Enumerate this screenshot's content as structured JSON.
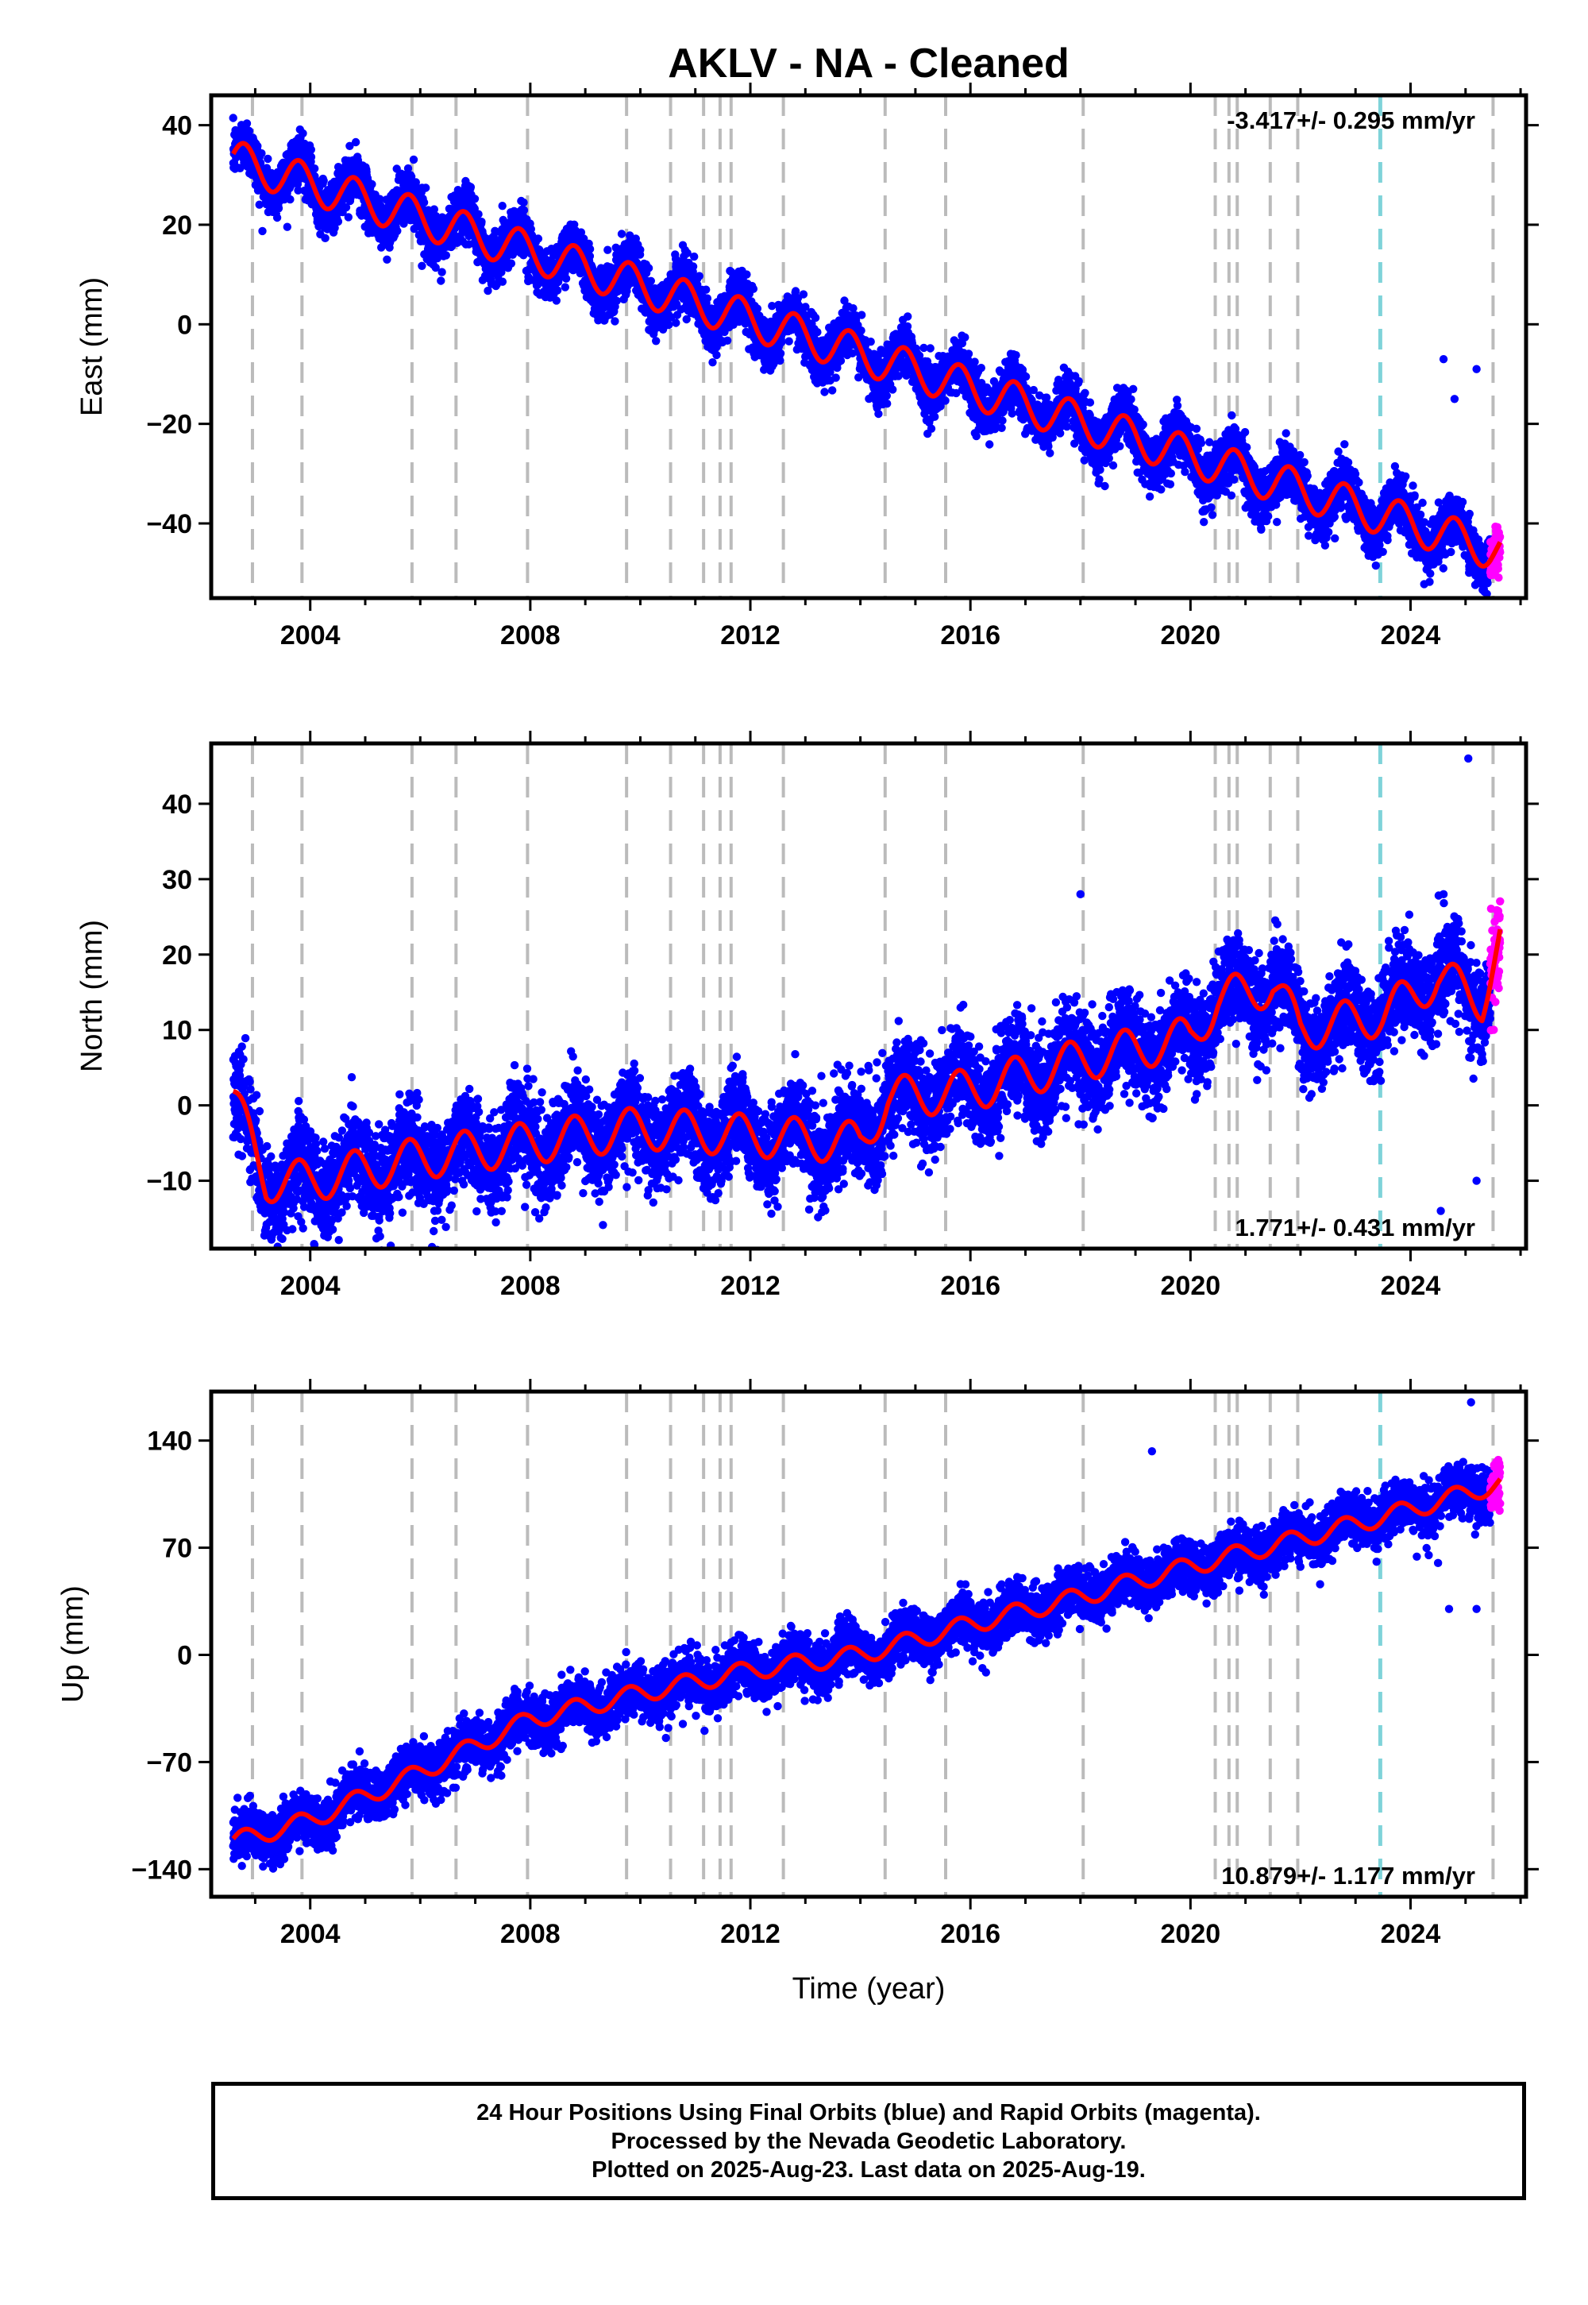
{
  "figure_title": "AKLV  - NA - Cleaned",
  "xlabel": "Time (year)",
  "colors": {
    "final_orbits": "#0000ff",
    "rapid_orbits": "#ff00ff",
    "model_fit": "#ff0000",
    "event_lines": "#bbbbbb",
    "highlight_event": "#7fd3d9"
  },
  "caption": {
    "line1": "24 Hour Positions Using Final Orbits (blue) and Rapid Orbits (magenta).",
    "line2": "Processed by the Nevada Geodetic Laboratory.",
    "line3": "Plotted on 2025-Aug-23. Last data on 2025-Aug-19."
  },
  "chart_data": [
    {
      "type": "scatter",
      "component": "east",
      "ylabel": "East (mm)",
      "xlim": [
        2002.2,
        2026.1
      ],
      "ylim": [
        -55,
        46
      ],
      "yticks": [
        40,
        20,
        0,
        -20,
        -40
      ],
      "ytick_labels": [
        "40",
        "20",
        "0",
        "−20",
        "−40"
      ],
      "xticks": [
        2004,
        2008,
        2012,
        2016,
        2020,
        2024
      ],
      "rate_label": "-3.417+/- 0.295 mm/yr",
      "rate_position": "top-right",
      "data_start": 2002.6,
      "data_end": 2025.63,
      "rapid_start": 2025.45,
      "trend": {
        "slope": -3.417,
        "reference_year": 2002.6,
        "value_at_reference": 33
      },
      "seasonal_amplitude": 4.0,
      "offsets": [
        {
          "year": 2002.95,
          "size": 3
        }
      ],
      "scatter_std": 2.6,
      "outliers": [
        {
          "x": 2024.6,
          "y": -7
        },
        {
          "x": 2024.8,
          "y": -15
        },
        {
          "x": 2025.4,
          "y": -52
        },
        {
          "x": 2025.2,
          "y": -9
        }
      ],
      "grid": false
    },
    {
      "type": "scatter",
      "component": "north",
      "ylabel": "North (mm)",
      "xlim": [
        2002.2,
        2026.1
      ],
      "ylim": [
        -19,
        48
      ],
      "yticks": [
        40,
        30,
        20,
        10,
        0,
        -10
      ],
      "ytick_labels": [
        "40",
        "30",
        "20",
        "10",
        "0",
        "−10"
      ],
      "xticks": [
        2004,
        2008,
        2012,
        2016,
        2020,
        2024
      ],
      "rate_label": "1.771+/- 0.431 mm/yr",
      "rate_position": "bottom-right",
      "data_start": 2002.6,
      "data_end": 2025.63,
      "rapid_start": 2025.45,
      "trend_points": [
        [
          2002.6,
          1
        ],
        [
          2003.2,
          -10
        ],
        [
          2004.0,
          -10
        ],
        [
          2006.0,
          -7
        ],
        [
          2008.0,
          -5
        ],
        [
          2010.0,
          -3
        ],
        [
          2012.0,
          -4
        ],
        [
          2014.0,
          -5
        ],
        [
          2014.5,
          1
        ],
        [
          2016.0,
          2
        ],
        [
          2018.0,
          6
        ],
        [
          2020.0,
          9
        ],
        [
          2020.5,
          14
        ],
        [
          2021.5,
          16
        ],
        [
          2022.0,
          10
        ],
        [
          2023.5,
          12
        ],
        [
          2024.5,
          17
        ],
        [
          2025.3,
          14
        ],
        [
          2025.63,
          22
        ]
      ],
      "seasonal_amplitude": 2.8,
      "scatter_std": 3.0,
      "outliers": [
        {
          "x": 2025.05,
          "y": 46
        },
        {
          "x": 2024.55,
          "y": -14
        },
        {
          "x": 2025.2,
          "y": -10
        },
        {
          "x": 2024.6,
          "y": 28
        },
        {
          "x": 2018.0,
          "y": 28
        }
      ],
      "grid": false
    },
    {
      "type": "scatter",
      "component": "up",
      "ylabel": "Up (mm)",
      "xlim": [
        2002.2,
        2026.1
      ],
      "ylim": [
        -158,
        172
      ],
      "yticks": [
        140,
        70,
        0,
        -70,
        -140
      ],
      "ytick_labels": [
        "140",
        "70",
        "0",
        "−70",
        "−140"
      ],
      "xticks": [
        2004,
        2008,
        2012,
        2016,
        2020,
        2024
      ],
      "rate_label": "10.879+/- 1.177 mm/yr",
      "rate_position": "bottom-right",
      "data_start": 2002.6,
      "data_end": 2025.63,
      "rapid_start": 2025.45,
      "trend_points": [
        [
          2002.6,
          -122
        ],
        [
          2004.0,
          -108
        ],
        [
          2005.8,
          -80
        ],
        [
          2008.0,
          -42
        ],
        [
          2010.0,
          -25
        ],
        [
          2012.0,
          -10
        ],
        [
          2014.0,
          0
        ],
        [
          2016.0,
          20
        ],
        [
          2018.0,
          38
        ],
        [
          2020.0,
          58
        ],
        [
          2022.0,
          76
        ],
        [
          2024.0,
          95
        ],
        [
          2025.63,
          112
        ]
      ],
      "seasonal_amplitude": 6.0,
      "scatter_std": 8.0,
      "outliers": [
        {
          "x": 2019.3,
          "y": 133
        },
        {
          "x": 2025.1,
          "y": 165
        },
        {
          "x": 2024.5,
          "y": 60
        },
        {
          "x": 2024.7,
          "y": 30
        },
        {
          "x": 2025.2,
          "y": 30
        }
      ],
      "grid": false
    }
  ],
  "event_years": [
    2002.95,
    2003.85,
    2005.85,
    2006.65,
    2007.95,
    2009.75,
    2010.55,
    2011.15,
    2011.45,
    2011.65,
    2012.6,
    2014.45,
    2015.55,
    2018.05,
    2020.45,
    2020.7,
    2020.85,
    2021.45,
    2021.95,
    2025.5
  ],
  "highlight_event_years": [
    2023.45
  ]
}
